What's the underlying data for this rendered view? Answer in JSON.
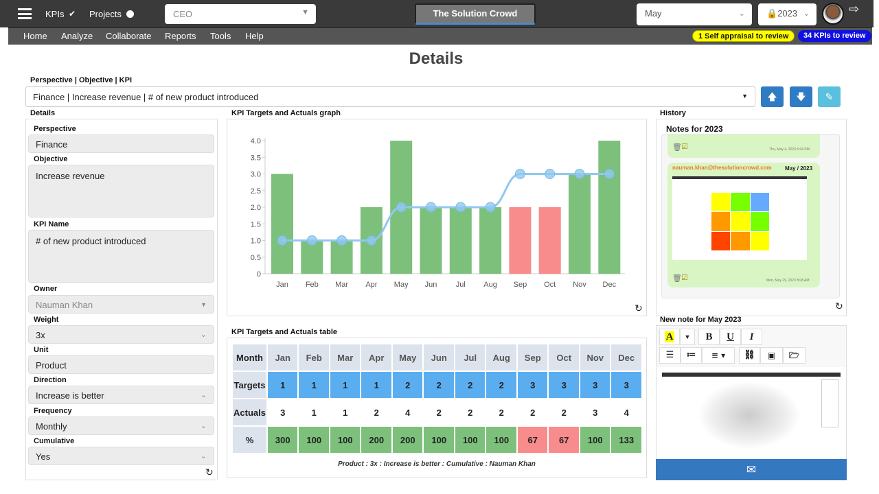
{
  "topbar": {
    "kpis": "KPIs",
    "projects": "Projects",
    "role": "CEO",
    "brand": "The Solution Crowd",
    "month": "May",
    "year": "2023"
  },
  "nav": [
    "Home",
    "Analyze",
    "Collaborate",
    "Reports",
    "Tools",
    "Help"
  ],
  "badges": {
    "appraisal": "1 Self appraisal to review",
    "kpis": "34 KPIs to review"
  },
  "page_title": "Details",
  "selector": {
    "label": "Perspective | Objective | KPI",
    "value": "Finance | Increase revenue | # of new product introduced"
  },
  "details": {
    "heading": "Details",
    "perspective_label": "Perspective",
    "perspective": "Finance",
    "objective_label": "Objective",
    "objective": "Increase revenue",
    "kpi_label": "KPI Name",
    "kpi": "# of new product introduced",
    "owner_label": "Owner",
    "owner": "Nauman Khan",
    "weight_label": "Weight",
    "weight": "3x",
    "unit_label": "Unit",
    "unit": "Product",
    "direction_label": "Direction",
    "direction": "Increase is better",
    "frequency_label": "Frequency",
    "frequency": "Monthly",
    "cumulative_label": "Cumulative",
    "cumulative": "Yes"
  },
  "graph_title": "KPI Targets and Actuals graph",
  "table_title": "KPI Targets and Actuals table",
  "chart_data": {
    "type": "bar",
    "categories": [
      "Jan",
      "Feb",
      "Mar",
      "Apr",
      "May",
      "Jun",
      "Jul",
      "Aug",
      "Sep",
      "Oct",
      "Nov",
      "Dec"
    ],
    "series": [
      {
        "name": "Actuals",
        "type": "bar",
        "values": [
          3,
          1,
          1,
          2,
          4,
          2,
          2,
          2,
          2,
          2,
          3,
          4
        ]
      },
      {
        "name": "Targets",
        "type": "line",
        "values": [
          1,
          1,
          1,
          1,
          2,
          2,
          2,
          2,
          3,
          3,
          3,
          3
        ]
      }
    ],
    "ylim": [
      0,
      4
    ],
    "yticks": [
      "0",
      "0.5",
      "1.0",
      "1.5",
      "2.0",
      "2.5",
      "3.0",
      "3.5",
      "4.0"
    ],
    "colors": {
      "good": "#7cc07c",
      "bad": "#f88b8b",
      "target": "#90c8f0"
    }
  },
  "table": {
    "headers": [
      "Month",
      "Targets",
      "Actuals",
      "%"
    ],
    "percent": [
      "300",
      "100",
      "100",
      "200",
      "200",
      "100",
      "100",
      "100",
      "67",
      "67",
      "100",
      "133"
    ],
    "footer": "Product : 3x : Increase is better : Cumulative : Nauman Khan"
  },
  "history": {
    "title": "History",
    "notes_title": "Notes for 2023",
    "note1_time": "Thu, May 4, 2023 5:04 PM",
    "note2_author": "nauman.khan@thesolutioncrowd.com",
    "note2_period": "May / 2023",
    "note2_time": "Mon, May 29, 2023 8:08 AM"
  },
  "new_note": {
    "title": "New note for May 2023"
  }
}
